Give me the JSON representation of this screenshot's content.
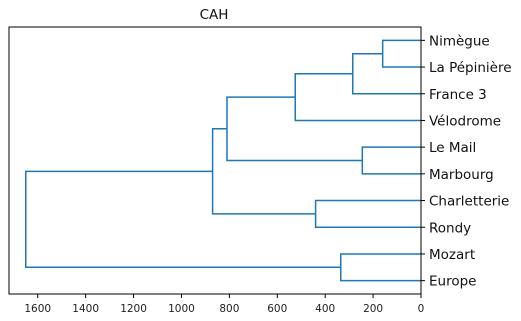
{
  "chart_data": {
    "type": "dendrogram",
    "title": "CAH",
    "orientation": "left",
    "xlim": [
      1720,
      0
    ],
    "x_ticks": [
      1600,
      1400,
      1200,
      1000,
      800,
      600,
      400,
      200,
      0
    ],
    "line_color": "#1f77b4",
    "leaves": [
      "Nimègue",
      "La Pépinière",
      "France 3",
      "Vélodrome",
      "Le Mail",
      "Marbourg",
      "Charletterie",
      "Rondy",
      "Mozart",
      "Europe"
    ],
    "merges": [
      {
        "left": 0,
        "right": 1,
        "height": 160
      },
      {
        "left": 10,
        "right": 2,
        "height": 285
      },
      {
        "left": 11,
        "right": 3,
        "height": 525
      },
      {
        "left": 4,
        "right": 5,
        "height": 245
      },
      {
        "left": 12,
        "right": 13,
        "height": 810
      },
      {
        "left": 6,
        "right": 7,
        "height": 440
      },
      {
        "left": 14,
        "right": 15,
        "height": 870
      },
      {
        "left": 8,
        "right": 9,
        "height": 335
      },
      {
        "left": 16,
        "right": 17,
        "height": 1650
      }
    ]
  }
}
